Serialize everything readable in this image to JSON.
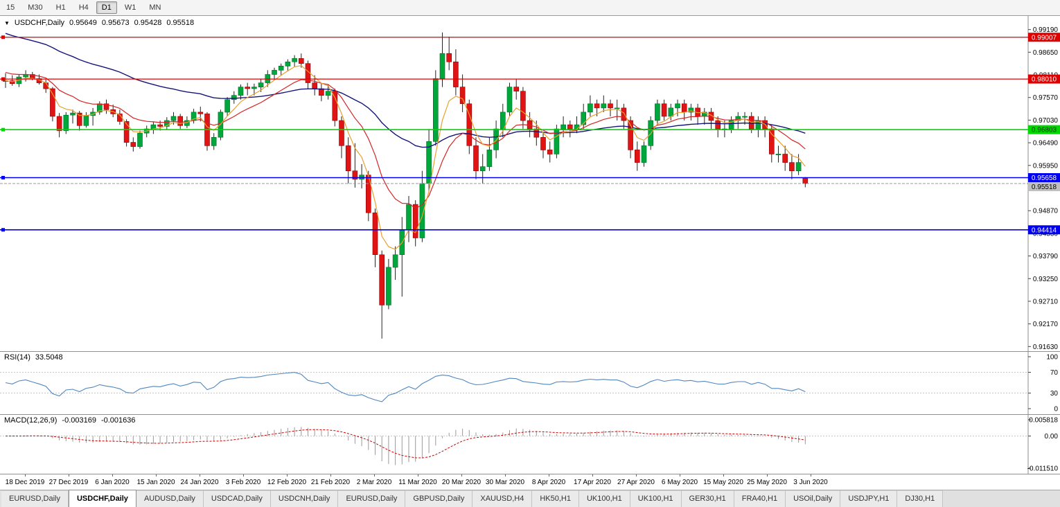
{
  "toolbar": {
    "timeframes": [
      {
        "label": "15",
        "active": false
      },
      {
        "label": "M30",
        "active": false
      },
      {
        "label": "H1",
        "active": false
      },
      {
        "label": "H4",
        "active": false
      },
      {
        "label": "D1",
        "active": true
      },
      {
        "label": "W1",
        "active": false
      },
      {
        "label": "MN",
        "active": false
      }
    ]
  },
  "chart": {
    "symbol": "USDCHF,Daily",
    "ohlc": {
      "open": "0.95649",
      "high": "0.95673",
      "low": "0.95428",
      "close": "0.95518"
    }
  },
  "colors": {
    "bull": "#00a83c",
    "bull_border": "#006a24",
    "bear": "#e01414",
    "bear_border": "#8c0000",
    "wick": "#222222",
    "ma_slow": "#141478",
    "ma_mid": "#d42424",
    "ma_fast": "#e8a030",
    "rsi": "#4f86c0",
    "rsi_level": "#c4c4c4",
    "macd_hist": "#9a9a9a",
    "macd_signal": "#cc0000",
    "current_line": "#999999",
    "current_badge": "#c0c0c0",
    "axis_text": "#000000"
  },
  "chart_data": {
    "type": "candlestick",
    "title": "USDCHF,Daily",
    "x_labels": [
      "18 Dec 2019",
      "27 Dec 2019",
      "6 Jan 2020",
      "15 Jan 2020",
      "24 Jan 2020",
      "3 Feb 2020",
      "12 Feb 2020",
      "21 Feb 2020",
      "2 Mar 2020",
      "11 Mar 2020",
      "20 Mar 2020",
      "30 Mar 2020",
      "8 Apr 2020",
      "17 Apr 2020",
      "27 Apr 2020",
      "6 May 2020",
      "15 May 2020",
      "25 May 2020",
      "3 Jun 2020"
    ],
    "y_ticks": [
      0.9919,
      0.9865,
      0.9811,
      0.9757,
      0.9703,
      0.9649,
      0.9595,
      0.9541,
      0.9487,
      0.9433,
      0.9379,
      0.9325,
      0.9271,
      0.9217,
      0.9163
    ],
    "y_range": {
      "top": 0.99515,
      "bottom": 0.9152
    },
    "candles": [
      [
        0.9795,
        0.9815,
        0.978,
        0.9797
      ],
      [
        0.9797,
        0.981,
        0.9785,
        0.979
      ],
      [
        0.979,
        0.9812,
        0.9782,
        0.9806
      ],
      [
        0.9806,
        0.9822,
        0.9795,
        0.9812
      ],
      [
        0.9812,
        0.9818,
        0.9798,
        0.9802
      ],
      [
        0.9802,
        0.9812,
        0.9788,
        0.9792
      ],
      [
        0.9792,
        0.98,
        0.9768,
        0.9778
      ],
      [
        0.9778,
        0.9782,
        0.97,
        0.9712
      ],
      [
        0.9712,
        0.972,
        0.9662,
        0.9678
      ],
      [
        0.9678,
        0.9722,
        0.967,
        0.9715
      ],
      [
        0.9715,
        0.9728,
        0.9695,
        0.972
      ],
      [
        0.972,
        0.9725,
        0.9678,
        0.969
      ],
      [
        0.969,
        0.9722,
        0.9685,
        0.9714
      ],
      [
        0.9714,
        0.9732,
        0.969,
        0.9722
      ],
      [
        0.9722,
        0.9748,
        0.9716,
        0.9742
      ],
      [
        0.9742,
        0.9752,
        0.9718,
        0.9728
      ],
      [
        0.9728,
        0.974,
        0.971,
        0.9718
      ],
      [
        0.9718,
        0.9728,
        0.9692,
        0.97
      ],
      [
        0.97,
        0.9705,
        0.964,
        0.965
      ],
      [
        0.965,
        0.9662,
        0.9628,
        0.964
      ],
      [
        0.964,
        0.9678,
        0.9635,
        0.9672
      ],
      [
        0.9672,
        0.969,
        0.9662,
        0.9682
      ],
      [
        0.9682,
        0.97,
        0.967,
        0.9692
      ],
      [
        0.9692,
        0.9702,
        0.9678,
        0.9688
      ],
      [
        0.9688,
        0.971,
        0.968,
        0.9702
      ],
      [
        0.9702,
        0.9722,
        0.9692,
        0.9712
      ],
      [
        0.9712,
        0.9718,
        0.9682,
        0.969
      ],
      [
        0.969,
        0.9712,
        0.9684,
        0.9702
      ],
      [
        0.9702,
        0.973,
        0.9695,
        0.9722
      ],
      [
        0.9722,
        0.9735,
        0.97,
        0.9718
      ],
      [
        0.9718,
        0.9722,
        0.963,
        0.9642
      ],
      [
        0.9642,
        0.9672,
        0.9632,
        0.9662
      ],
      [
        0.9662,
        0.9728,
        0.9655,
        0.9722
      ],
      [
        0.9722,
        0.9758,
        0.9712,
        0.9752
      ],
      [
        0.9752,
        0.9772,
        0.9742,
        0.9762
      ],
      [
        0.9762,
        0.9788,
        0.9752,
        0.9782
      ],
      [
        0.9782,
        0.9792,
        0.9762,
        0.9778
      ],
      [
        0.9778,
        0.979,
        0.9762,
        0.9782
      ],
      [
        0.9782,
        0.9802,
        0.977,
        0.9792
      ],
      [
        0.9792,
        0.9822,
        0.9782,
        0.9812
      ],
      [
        0.9812,
        0.9828,
        0.9798,
        0.9822
      ],
      [
        0.9822,
        0.9838,
        0.981,
        0.9832
      ],
      [
        0.9832,
        0.9848,
        0.982,
        0.9842
      ],
      [
        0.9842,
        0.9858,
        0.983,
        0.985
      ],
      [
        0.985,
        0.9862,
        0.9828,
        0.9838
      ],
      [
        0.9838,
        0.9845,
        0.9778,
        0.9792
      ],
      [
        0.9792,
        0.981,
        0.9762,
        0.9778
      ],
      [
        0.9778,
        0.9792,
        0.9748,
        0.9762
      ],
      [
        0.9762,
        0.9788,
        0.9752,
        0.9772
      ],
      [
        0.9772,
        0.9778,
        0.9688,
        0.9702
      ],
      [
        0.9702,
        0.9712,
        0.9612,
        0.9642
      ],
      [
        0.9642,
        0.9662,
        0.9552,
        0.9582
      ],
      [
        0.9582,
        0.9648,
        0.9542,
        0.9562
      ],
      [
        0.9562,
        0.9598,
        0.954,
        0.9572
      ],
      [
        0.9572,
        0.9582,
        0.9462,
        0.9482
      ],
      [
        0.9482,
        0.9492,
        0.9352,
        0.9382
      ],
      [
        0.9382,
        0.9392,
        0.9182,
        0.9262
      ],
      [
        0.9262,
        0.9372,
        0.9252,
        0.9352
      ],
      [
        0.9352,
        0.9402,
        0.9322,
        0.9382
      ],
      [
        0.9382,
        0.9472,
        0.9282,
        0.9442
      ],
      [
        0.9442,
        0.9522,
        0.9412,
        0.9502
      ],
      [
        0.9502,
        0.9512,
        0.9402,
        0.9422
      ],
      [
        0.9422,
        0.9582,
        0.9412,
        0.9552
      ],
      [
        0.9552,
        0.9682,
        0.9532,
        0.9652
      ],
      [
        0.9652,
        0.9822,
        0.9642,
        0.9802
      ],
      [
        0.9802,
        0.9912,
        0.9782,
        0.9862
      ],
      [
        0.9862,
        0.9902,
        0.9822,
        0.9842
      ],
      [
        0.9842,
        0.9872,
        0.9762,
        0.9782
      ],
      [
        0.9782,
        0.9812,
        0.9722,
        0.9742
      ],
      [
        0.9742,
        0.9752,
        0.9622,
        0.9642
      ],
      [
        0.9642,
        0.9662,
        0.9562,
        0.9582
      ],
      [
        0.9582,
        0.9622,
        0.9552,
        0.9592
      ],
      [
        0.9592,
        0.9662,
        0.9582,
        0.9632
      ],
      [
        0.9632,
        0.9702,
        0.9612,
        0.9682
      ],
      [
        0.9682,
        0.9742,
        0.9662,
        0.9722
      ],
      [
        0.9722,
        0.9792,
        0.9712,
        0.9782
      ],
      [
        0.9782,
        0.9802,
        0.9752,
        0.9772
      ],
      [
        0.9772,
        0.9782,
        0.9682,
        0.9702
      ],
      [
        0.9702,
        0.9722,
        0.9662,
        0.9682
      ],
      [
        0.9682,
        0.9702,
        0.9642,
        0.9662
      ],
      [
        0.9662,
        0.9672,
        0.9612,
        0.9632
      ],
      [
        0.9632,
        0.9652,
        0.9602,
        0.9622
      ],
      [
        0.9622,
        0.9692,
        0.9612,
        0.9682
      ],
      [
        0.9682,
        0.9712,
        0.9662,
        0.9692
      ],
      [
        0.9692,
        0.9702,
        0.9662,
        0.9682
      ],
      [
        0.9682,
        0.9712,
        0.9672,
        0.9692
      ],
      [
        0.9692,
        0.9742,
        0.9682,
        0.9722
      ],
      [
        0.9722,
        0.9762,
        0.9712,
        0.9742
      ],
      [
        0.9742,
        0.9752,
        0.9712,
        0.9732
      ],
      [
        0.9732,
        0.9762,
        0.9722,
        0.9742
      ],
      [
        0.9742,
        0.9752,
        0.9712,
        0.9732
      ],
      [
        0.9732,
        0.9752,
        0.9702,
        0.9732
      ],
      [
        0.9732,
        0.9742,
        0.9682,
        0.9702
      ],
      [
        0.9702,
        0.9712,
        0.9612,
        0.9632
      ],
      [
        0.9632,
        0.9652,
        0.9582,
        0.9602
      ],
      [
        0.9602,
        0.9652,
        0.9592,
        0.9642
      ],
      [
        0.9642,
        0.9712,
        0.9632,
        0.9702
      ],
      [
        0.9702,
        0.9752,
        0.9692,
        0.9742
      ],
      [
        0.9742,
        0.9752,
        0.9702,
        0.9712
      ],
      [
        0.9712,
        0.9742,
        0.9702,
        0.9732
      ],
      [
        0.9732,
        0.9752,
        0.9712,
        0.9742
      ],
      [
        0.9742,
        0.9752,
        0.9702,
        0.9722
      ],
      [
        0.9722,
        0.9742,
        0.9702,
        0.9732
      ],
      [
        0.9732,
        0.9742,
        0.9692,
        0.9712
      ],
      [
        0.9712,
        0.9732,
        0.9692,
        0.9722
      ],
      [
        0.9722,
        0.9732,
        0.9682,
        0.9702
      ],
      [
        0.9702,
        0.9712,
        0.9662,
        0.9682
      ],
      [
        0.9682,
        0.9702,
        0.9662,
        0.9682
      ],
      [
        0.9682,
        0.9712,
        0.9672,
        0.9702
      ],
      [
        0.9702,
        0.9722,
        0.9682,
        0.9712
      ],
      [
        0.9712,
        0.9722,
        0.9692,
        0.9712
      ],
      [
        0.9712,
        0.9722,
        0.9672,
        0.9682
      ],
      [
        0.9682,
        0.9712,
        0.9662,
        0.9702
      ],
      [
        0.9702,
        0.9712,
        0.9662,
        0.9682
      ],
      [
        0.9682,
        0.9692,
        0.9602,
        0.9622
      ],
      [
        0.9622,
        0.9642,
        0.9602,
        0.9622
      ],
      [
        0.9622,
        0.9642,
        0.9582,
        0.9602
      ],
      [
        0.9602,
        0.9622,
        0.9562,
        0.9582
      ],
      [
        0.9582,
        0.9622,
        0.9572,
        0.9602
      ],
      [
        0.95649,
        0.95673,
        0.95428,
        0.95518
      ]
    ],
    "ma_periods": {
      "fast": 5,
      "mid": 13,
      "slow": 45
    },
    "h_lines": [
      {
        "price": 0.99007,
        "color": "#dd0000",
        "width": 1.2,
        "text_color": "#ffffff"
      },
      {
        "price": 0.9801,
        "color": "#dd0000",
        "width": 1.2,
        "text_color": "#ffffff"
      },
      {
        "price": 0.96803,
        "color": "#00d900",
        "width": 1.6,
        "text_color": "#003300"
      },
      {
        "price": 0.95658,
        "color": "#0000ee",
        "width": 1.6,
        "text_color": "#ffffff"
      },
      {
        "price": 0.94414,
        "color": "#0000ee",
        "width": 1.6,
        "text_color": "#ffffff"
      }
    ],
    "current_price": 0.95518,
    "indicators": {
      "rsi": {
        "label": "RSI(14)",
        "value": "33.5048",
        "period": 14,
        "levels": [
          100,
          70,
          30,
          0
        ]
      },
      "macd": {
        "label": "MACD(12,26,9)",
        "value_main": "-0.003169",
        "value_signal": "-0.001636",
        "fast": 12,
        "slow": 26,
        "signal": 9,
        "scale_max": 0.005818,
        "scale_min": -0.01151,
        "axis_max_label": "0.005818",
        "axis_zero_label": "0.00",
        "axis_min_label": "-0.011510"
      }
    }
  },
  "tabs": [
    {
      "label": "EURUSD,Daily",
      "active": false
    },
    {
      "label": "USDCHF,Daily",
      "active": true
    },
    {
      "label": "AUDUSD,Daily",
      "active": false
    },
    {
      "label": "USDCAD,Daily",
      "active": false
    },
    {
      "label": "USDCNH,Daily",
      "active": false
    },
    {
      "label": "EURUSD,Daily",
      "active": false
    },
    {
      "label": "GBPUSD,Daily",
      "active": false
    },
    {
      "label": "XAUUSD,H4",
      "active": false
    },
    {
      "label": "HK50,H1",
      "active": false
    },
    {
      "label": "UK100,H1",
      "active": false
    },
    {
      "label": "UK100,H1",
      "active": false
    },
    {
      "label": "GER30,H1",
      "active": false
    },
    {
      "label": "FRA40,H1",
      "active": false
    },
    {
      "label": "USOil,Daily",
      "active": false
    },
    {
      "label": "USDJPY,H1",
      "active": false
    },
    {
      "label": "DJ30,H1",
      "active": false
    }
  ]
}
